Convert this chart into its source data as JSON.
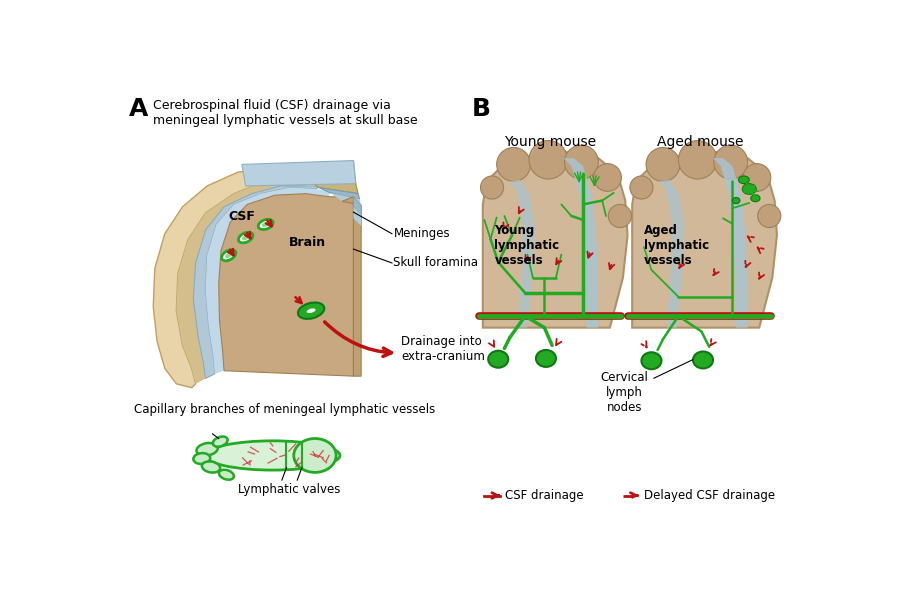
{
  "bg_color": "#ffffff",
  "label_A": "A",
  "label_B": "B",
  "title_A": "Cerebrospinal fluid (CSF) drainage via\nmeningeal lymphatic vessels at skull base",
  "label_meninges": "Meninges",
  "label_skull": "Skull foramina",
  "label_drainage": "Drainage into\nextra-cranium",
  "label_capillary": "Capillary branches of meningeal lymphatic vessels",
  "label_valves": "Lymphatic valves",
  "label_csf": "CSF",
  "label_brain": "Brain",
  "label_young_mouse": "Young mouse",
  "label_aged_mouse": "Aged mouse",
  "label_young_vessels": "Young\nlymphatic\nvessels",
  "label_aged_vessels": "Aged\nlymphatic\nvessels",
  "label_cervical": "Cervical\nlymph\nnodes",
  "label_csf_drainage": "→ CSF drainage",
  "label_delayed": "...→ Delayed CSF drainage",
  "skull_bone": "#e8d4a8",
  "skull_inner": "#d4be8c",
  "meninges_col": "#b0c8d8",
  "csf_col": "#c0d8e8",
  "brain_col": "#c8a880",
  "brain_dark": "#b09060",
  "green_vessel": "#22aa22",
  "green_dark": "#117711",
  "green_light": "#cceecc",
  "red_col": "#bb1111",
  "csf_sinus": "#a8c4d4"
}
